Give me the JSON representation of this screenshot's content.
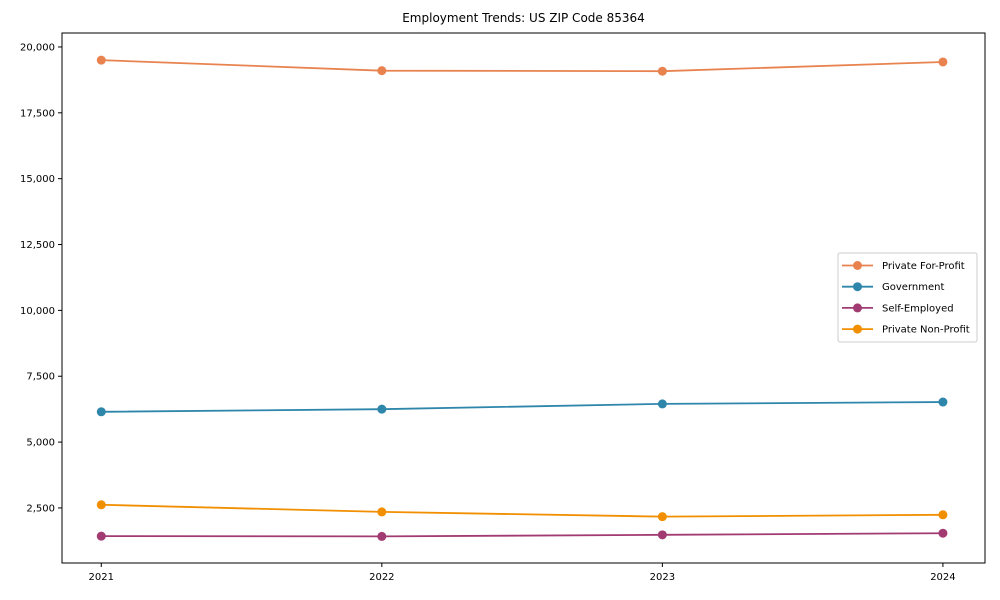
{
  "chart_data": {
    "type": "line",
    "title": "Employment Trends: US ZIP Code 85364",
    "x": [
      2021,
      2022,
      2023,
      2024
    ],
    "xtick_labels": [
      "2021",
      "2022",
      "2023",
      "2024"
    ],
    "series": [
      {
        "name": "Private For-Profit",
        "color": "#E8834F",
        "values": [
          19500,
          19100,
          19080,
          19430
        ]
      },
      {
        "name": "Government",
        "color": "#2E86AB",
        "values": [
          6150,
          6250,
          6450,
          6520
        ]
      },
      {
        "name": "Self-Employed",
        "color": "#A23B72",
        "values": [
          1430,
          1420,
          1480,
          1540
        ]
      },
      {
        "name": "Private Non-Profit",
        "color": "#F18F01",
        "values": [
          2620,
          2350,
          2170,
          2240
        ]
      }
    ],
    "xlabel": "",
    "ylabel": "",
    "xlim": [
      2020.86,
      2024.15
    ],
    "ylim": [
      410,
      20530
    ],
    "yticks": [
      2500,
      5000,
      7500,
      10000,
      12500,
      15000,
      17500,
      20000
    ],
    "ytick_labels": [
      "2,500",
      "5,000",
      "7,500",
      "10,000",
      "12,500",
      "15,000",
      "17,500",
      "20,000"
    ],
    "grid": false,
    "legend_position": "center right",
    "spine_color": "#000000",
    "legend_border_color": "#cccccc",
    "marker": "circle",
    "marker_radius": 4.5,
    "line_width": 1.8
  }
}
